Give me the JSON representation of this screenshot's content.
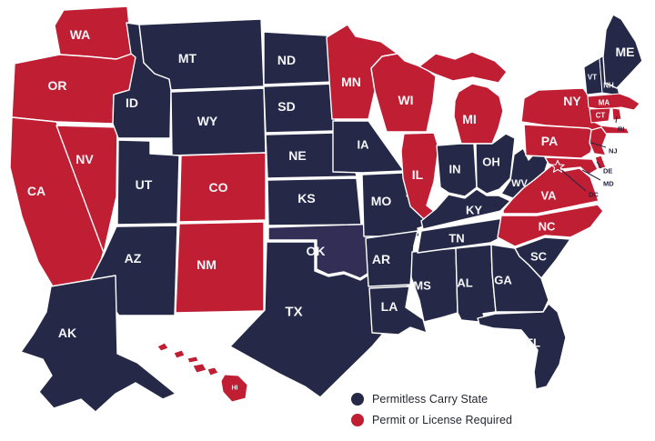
{
  "map": {
    "region": "United States",
    "colors": {
      "permitless": "#252947",
      "permit_required": "#bf1e33",
      "oklahoma_fill": "#332e55",
      "state_border": "#ffffff",
      "state_label": "#f5f6f8",
      "external_label": "#232744",
      "background": "#ffffff",
      "dc_star": "#ffffff"
    },
    "states": [
      {
        "abbr": "WA",
        "name": "Washington",
        "status": "permit_required"
      },
      {
        "abbr": "OR",
        "name": "Oregon",
        "status": "permit_required"
      },
      {
        "abbr": "CA",
        "name": "California",
        "status": "permit_required"
      },
      {
        "abbr": "NV",
        "name": "Nevada",
        "status": "permit_required"
      },
      {
        "abbr": "ID",
        "name": "Idaho",
        "status": "permitless"
      },
      {
        "abbr": "MT",
        "name": "Montana",
        "status": "permitless"
      },
      {
        "abbr": "WY",
        "name": "Wyoming",
        "status": "permitless"
      },
      {
        "abbr": "UT",
        "name": "Utah",
        "status": "permitless"
      },
      {
        "abbr": "AZ",
        "name": "Arizona",
        "status": "permitless"
      },
      {
        "abbr": "CO",
        "name": "Colorado",
        "status": "permit_required"
      },
      {
        "abbr": "NM",
        "name": "New Mexico",
        "status": "permit_required"
      },
      {
        "abbr": "ND",
        "name": "North Dakota",
        "status": "permitless"
      },
      {
        "abbr": "SD",
        "name": "South Dakota",
        "status": "permitless"
      },
      {
        "abbr": "NE",
        "name": "Nebraska",
        "status": "permitless"
      },
      {
        "abbr": "KS",
        "name": "Kansas",
        "status": "permitless"
      },
      {
        "abbr": "OK",
        "name": "Oklahoma",
        "status": "permitless"
      },
      {
        "abbr": "TX",
        "name": "Texas",
        "status": "permitless"
      },
      {
        "abbr": "MN",
        "name": "Minnesota",
        "status": "permit_required"
      },
      {
        "abbr": "IA",
        "name": "Iowa",
        "status": "permitless"
      },
      {
        "abbr": "MO",
        "name": "Missouri",
        "status": "permitless"
      },
      {
        "abbr": "AR",
        "name": "Arkansas",
        "status": "permitless"
      },
      {
        "abbr": "LA",
        "name": "Louisiana",
        "status": "permitless"
      },
      {
        "abbr": "WI",
        "name": "Wisconsin",
        "status": "permit_required"
      },
      {
        "abbr": "IL",
        "name": "Illinois",
        "status": "permit_required"
      },
      {
        "abbr": "MS",
        "name": "Mississippi",
        "status": "permitless"
      },
      {
        "abbr": "MI",
        "name": "Michigan",
        "status": "permit_required"
      },
      {
        "abbr": "IN",
        "name": "Indiana",
        "status": "permitless"
      },
      {
        "abbr": "OH",
        "name": "Ohio",
        "status": "permitless"
      },
      {
        "abbr": "KY",
        "name": "Kentucky",
        "status": "permitless"
      },
      {
        "abbr": "TN",
        "name": "Tennessee",
        "status": "permitless"
      },
      {
        "abbr": "AL",
        "name": "Alabama",
        "status": "permitless"
      },
      {
        "abbr": "GA",
        "name": "Georgia",
        "status": "permitless"
      },
      {
        "abbr": "FL",
        "name": "Florida",
        "status": "permitless"
      },
      {
        "abbr": "SC",
        "name": "South Carolina",
        "status": "permitless"
      },
      {
        "abbr": "NC",
        "name": "North Carolina",
        "status": "permit_required"
      },
      {
        "abbr": "VA",
        "name": "Virginia",
        "status": "permit_required"
      },
      {
        "abbr": "WV",
        "name": "West Virginia",
        "status": "permitless"
      },
      {
        "abbr": "PA",
        "name": "Pennsylvania",
        "status": "permit_required"
      },
      {
        "abbr": "NY",
        "name": "New York",
        "status": "permit_required"
      },
      {
        "abbr": "NJ",
        "name": "New Jersey",
        "status": "permit_required"
      },
      {
        "abbr": "DE",
        "name": "Delaware",
        "status": "permit_required"
      },
      {
        "abbr": "MD",
        "name": "Maryland",
        "status": "permit_required"
      },
      {
        "abbr": "DC",
        "name": "Washington DC",
        "status": "permit_required"
      },
      {
        "abbr": "VT",
        "name": "Vermont",
        "status": "permitless"
      },
      {
        "abbr": "NH",
        "name": "New Hampshire",
        "status": "permitless"
      },
      {
        "abbr": "MA",
        "name": "Massachusetts",
        "status": "permit_required"
      },
      {
        "abbr": "CT",
        "name": "Connecticut",
        "status": "permit_required"
      },
      {
        "abbr": "RI",
        "name": "Rhode Island",
        "status": "permit_required"
      },
      {
        "abbr": "ME",
        "name": "Maine",
        "status": "permitless"
      },
      {
        "abbr": "AK",
        "name": "Alaska",
        "status": "permitless"
      },
      {
        "abbr": "HI",
        "name": "Hawaii",
        "status": "permit_required"
      }
    ]
  },
  "legend": {
    "items": [
      {
        "label": "Permitless Carry State",
        "status": "permitless"
      },
      {
        "label": "Permit or License Required",
        "status": "permit_required"
      }
    ]
  }
}
